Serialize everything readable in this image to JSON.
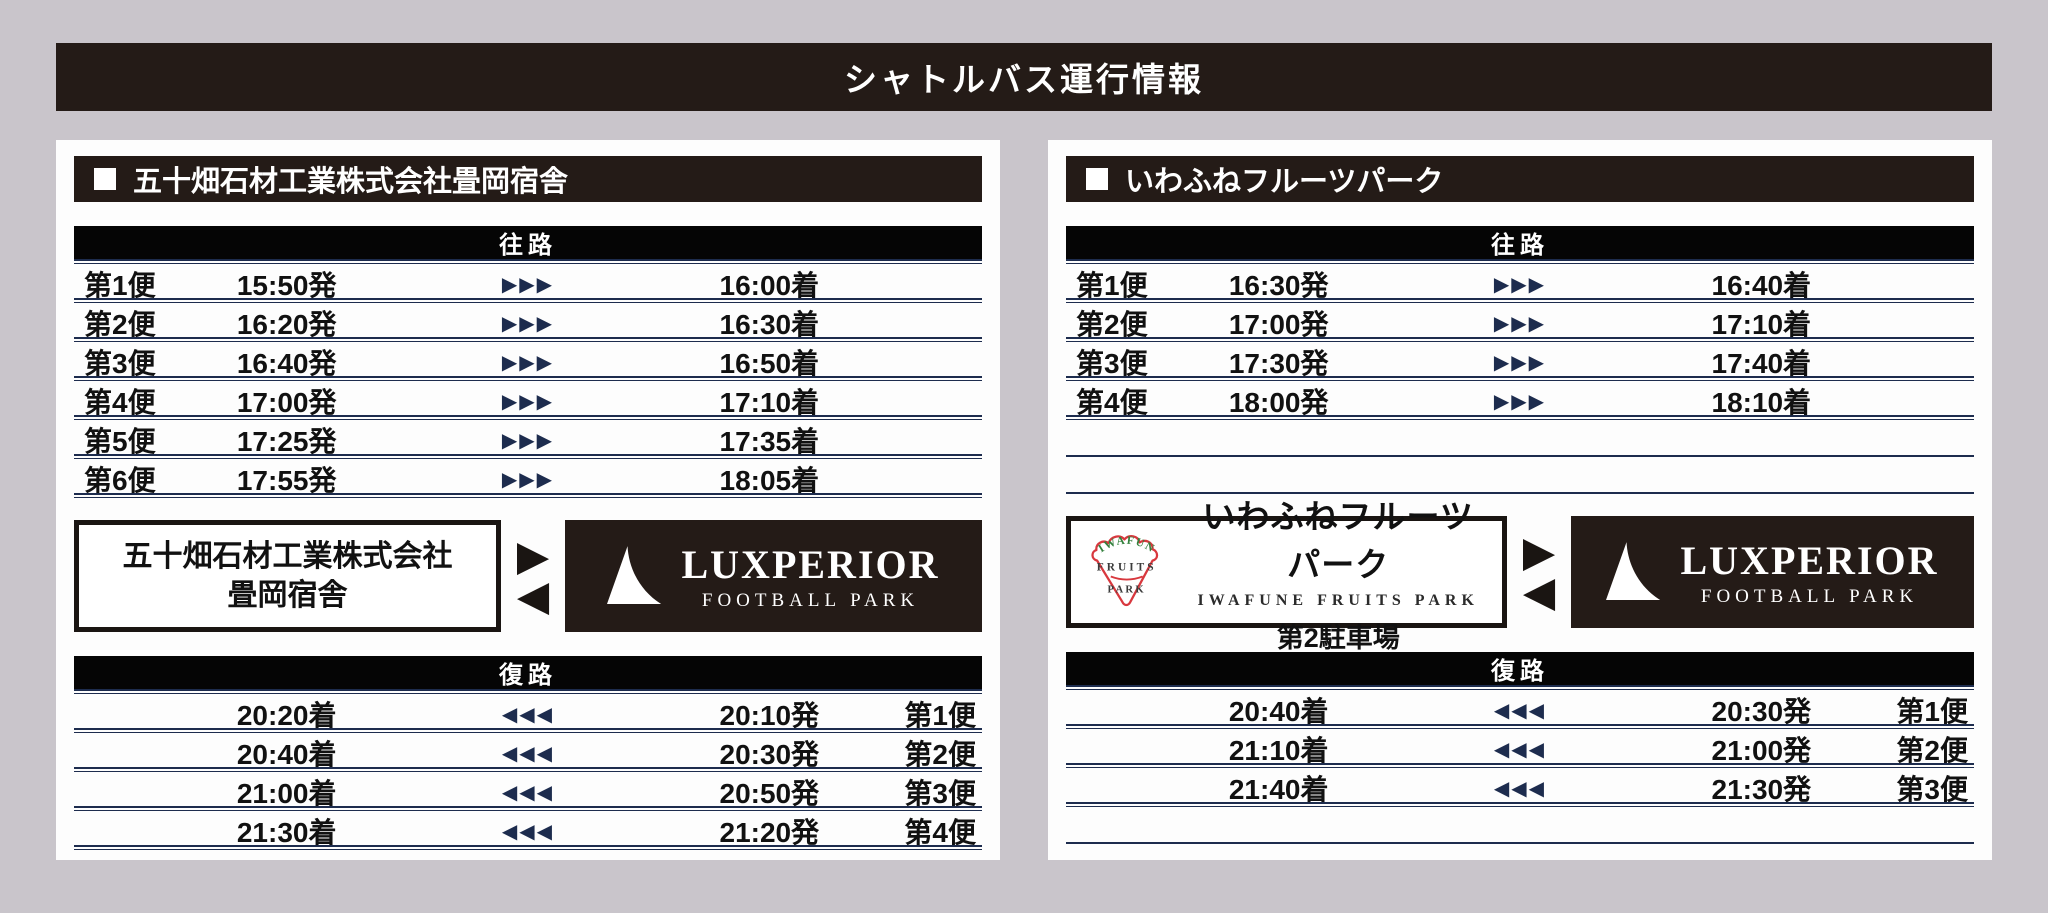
{
  "page": {
    "title": "シャトルバス運行情報",
    "colors": {
      "background": "#c9c5cb",
      "dark_bar": "#241b17",
      "section_bar": "#050505",
      "line_navy": "#1d2c4e",
      "logo_red": "#d8383e",
      "logo_green": "#33803c"
    }
  },
  "glyphs": {
    "forward": "▶▶▶",
    "backward": "◀◀◀",
    "arrow_right": "▶",
    "arrow_left": "◀"
  },
  "destination": {
    "name": "LUXPERIOR",
    "subtitle": "FOOTBALL PARK"
  },
  "panels": [
    {
      "title": "五十畑石材工業株式会社畳岡宿舎",
      "outbound": {
        "label": "往路",
        "empty_rows": 0,
        "rows": [
          {
            "no": "第1便",
            "dep": "15:50発",
            "arr": "16:00着"
          },
          {
            "no": "第2便",
            "dep": "16:20発",
            "arr": "16:30着"
          },
          {
            "no": "第3便",
            "dep": "16:40発",
            "arr": "16:50着"
          },
          {
            "no": "第4便",
            "dep": "17:00発",
            "arr": "17:10着"
          },
          {
            "no": "第5便",
            "dep": "17:25発",
            "arr": "17:35着"
          },
          {
            "no": "第6便",
            "dep": "17:55発",
            "arr": "18:05着"
          }
        ]
      },
      "route": {
        "origin_line1": "五十畑石材工業株式会社",
        "origin_line2": "畳岡宿舎"
      },
      "return": {
        "label": "復路",
        "empty_rows": 0,
        "rows": [
          {
            "no": "第1便",
            "arr": "20:20着",
            "dep": "20:10発"
          },
          {
            "no": "第2便",
            "arr": "20:40着",
            "dep": "20:30発"
          },
          {
            "no": "第3便",
            "arr": "21:00着",
            "dep": "20:50発"
          },
          {
            "no": "第4便",
            "arr": "21:30着",
            "dep": "21:20発"
          }
        ]
      }
    },
    {
      "title": "いわふねフルーツパーク",
      "outbound": {
        "label": "往路",
        "empty_rows": 2,
        "rows": [
          {
            "no": "第1便",
            "dep": "16:30発",
            "arr": "16:40着"
          },
          {
            "no": "第2便",
            "dep": "17:00発",
            "arr": "17:10着"
          },
          {
            "no": "第3便",
            "dep": "17:30発",
            "arr": "17:40着"
          },
          {
            "no": "第4便",
            "dep": "18:00発",
            "arr": "18:10着"
          }
        ]
      },
      "route": {
        "logo_top": "IWAFUNE",
        "logo_mid": "FRUITS",
        "logo_bot": "PARK",
        "origin_title": "いわふねフルーツパーク",
        "origin_subtitle": "IWAFUNE FRUITS PARK",
        "origin_note": "第2駐車場"
      },
      "return": {
        "label": "復路",
        "empty_rows": 1,
        "rows": [
          {
            "no": "第1便",
            "arr": "20:40着",
            "dep": "20:30発"
          },
          {
            "no": "第2便",
            "arr": "21:10着",
            "dep": "21:00発"
          },
          {
            "no": "第3便",
            "arr": "21:40着",
            "dep": "21:30発"
          }
        ]
      }
    }
  ]
}
